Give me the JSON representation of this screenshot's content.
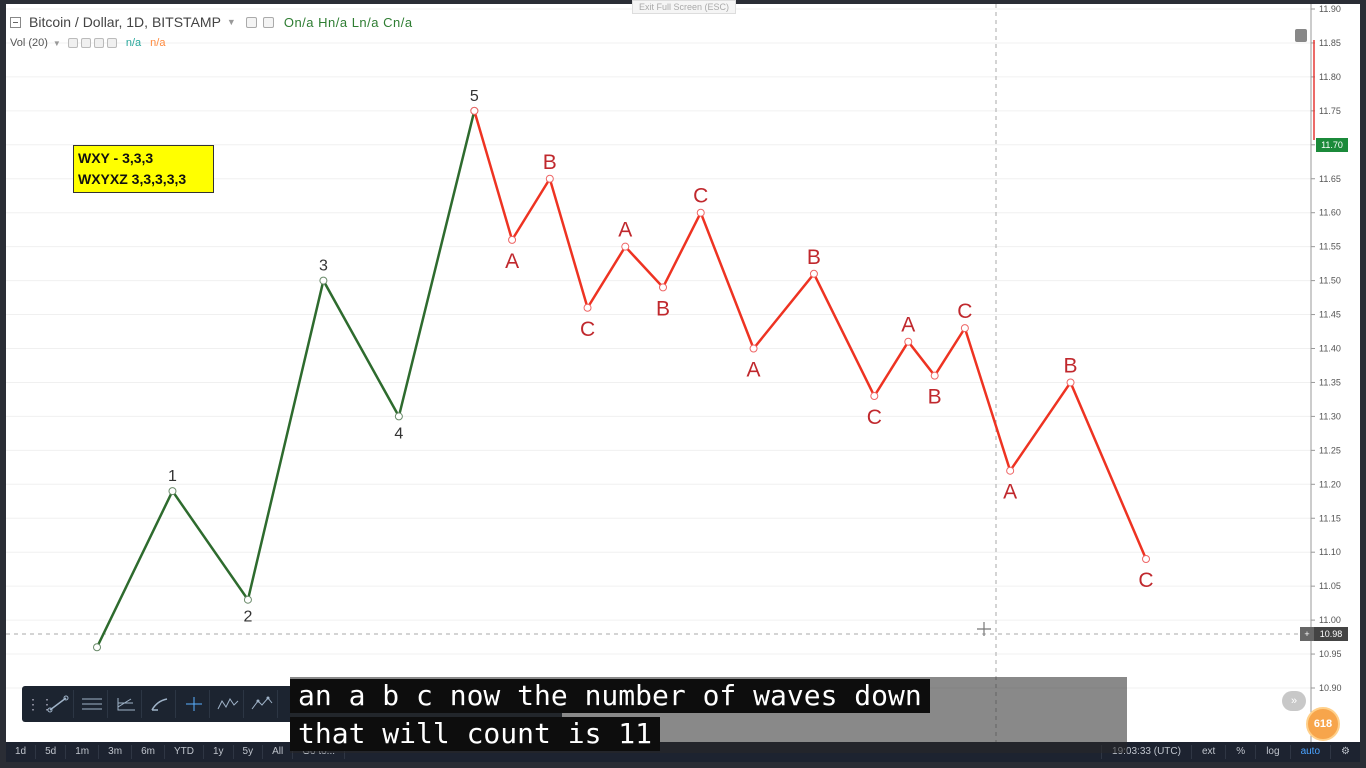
{
  "chart": {
    "symbol_title": "Bitcoin / Dollar, 1D, BITSTAMP",
    "ohlc": "On/a  Hn/a  Ln/a  Cn/a",
    "indicator": "Vol (20)",
    "indicator_val1": "n/a",
    "indicator_val2": "n/a",
    "exit_fullscreen": "Exit Full Screen (ESC)"
  },
  "note": {
    "line1": "WXY - 3,3,3",
    "line2": "WXYXZ 3,3,3,3,3"
  },
  "price_axis": {
    "ticks": [
      "11.90",
      "11.85",
      "11.80",
      "11.75",
      "11.70",
      "11.65",
      "11.60",
      "11.55",
      "11.50",
      "11.45",
      "11.40",
      "11.35",
      "11.30",
      "11.25",
      "11.20",
      "11.15",
      "11.10",
      "11.05",
      "11.00",
      "10.95",
      "10.90"
    ],
    "current_price": "11.70",
    "crosshair_price": "10.98"
  },
  "chart_data": {
    "type": "line",
    "title": "Bitcoin / Dollar, 1D, BITSTAMP",
    "ylim": [
      10.86,
      11.91
    ],
    "x_range": [
      0,
      20
    ],
    "series": [
      {
        "name": "impulse",
        "color": "#2e6b2e",
        "points": [
          {
            "x": 0,
            "y": 10.96,
            "label": ""
          },
          {
            "x": 1,
            "y": 11.19,
            "label": "1"
          },
          {
            "x": 2,
            "y": 11.03,
            "label": "2"
          },
          {
            "x": 3,
            "y": 11.5,
            "label": "3"
          },
          {
            "x": 4,
            "y": 11.3,
            "label": "4"
          },
          {
            "x": 5,
            "y": 11.75,
            "label": "5"
          }
        ]
      },
      {
        "name": "correction",
        "color": "#ee3322",
        "points": [
          {
            "x": 5,
            "y": 11.75,
            "label": ""
          },
          {
            "x": 5.5,
            "y": 11.56,
            "label": "A"
          },
          {
            "x": 6,
            "y": 11.65,
            "label": "B"
          },
          {
            "x": 6.5,
            "y": 11.46,
            "label": "C"
          },
          {
            "x": 7,
            "y": 11.55,
            "label": "A"
          },
          {
            "x": 7.5,
            "y": 11.49,
            "label": "B"
          },
          {
            "x": 8,
            "y": 11.6,
            "label": "C"
          },
          {
            "x": 8.7,
            "y": 11.4,
            "label": "A"
          },
          {
            "x": 9.5,
            "y": 11.51,
            "label": "B"
          },
          {
            "x": 10.3,
            "y": 11.33,
            "label": "C"
          },
          {
            "x": 10.75,
            "y": 11.41,
            "label": "A"
          },
          {
            "x": 11.1,
            "y": 11.36,
            "label": "B"
          },
          {
            "x": 11.5,
            "y": 11.43,
            "label": "C"
          },
          {
            "x": 12.1,
            "y": 11.22,
            "label": "A"
          },
          {
            "x": 12.9,
            "y": 11.35,
            "label": "B"
          },
          {
            "x": 13.9,
            "y": 11.09,
            "label": "C"
          }
        ]
      }
    ]
  },
  "subtitles": {
    "line1": "an a b c now the number of waves down",
    "line2": "that will count is 11"
  },
  "bottom_bar": {
    "ranges": [
      "1d",
      "5d",
      "1m",
      "3m",
      "6m",
      "YTD",
      "1y",
      "5y",
      "All",
      "Go to..."
    ],
    "clock": "19:03:33 (UTC)",
    "ext": "ext",
    "percent": "%",
    "log": "log",
    "auto": "auto"
  },
  "fib_badge": "618",
  "colors": {
    "impulse": "#2e6b2e",
    "correction": "#ee3322",
    "note_bg": "#ffff00"
  }
}
